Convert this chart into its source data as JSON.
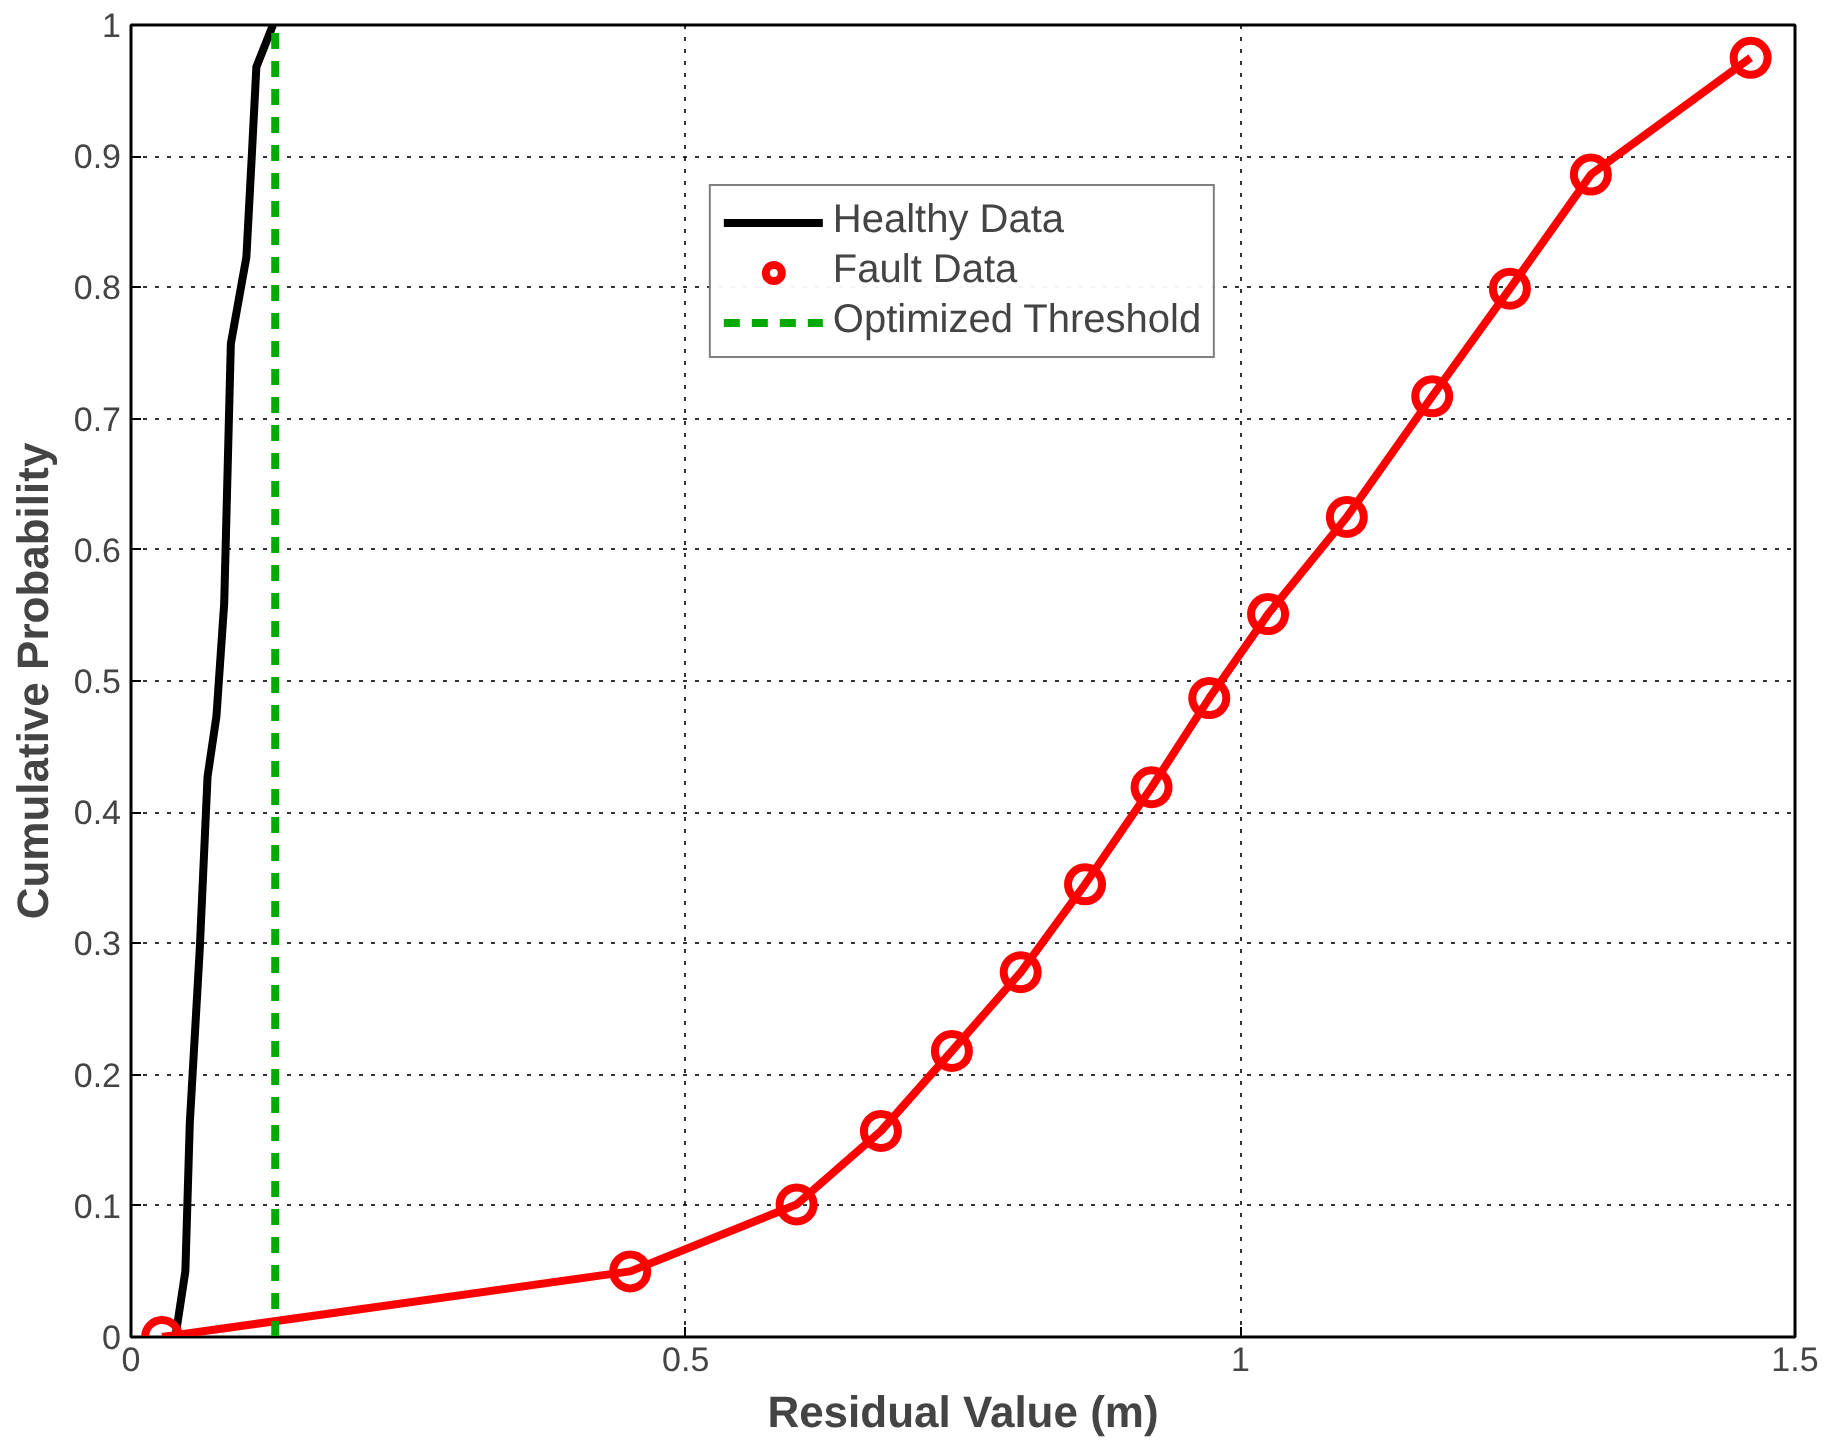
{
  "chart_data": {
    "type": "line",
    "xlabel": "Residual Value (m)",
    "ylabel": "Cumulative Probability",
    "xlim": [
      0,
      1.5
    ],
    "ylim": [
      0,
      1
    ],
    "xticks": [
      0,
      0.5,
      1,
      1.5
    ],
    "yticks": [
      0,
      0.1,
      0.2,
      0.3,
      0.4,
      0.5,
      0.6,
      0.7,
      0.8,
      0.9,
      1
    ],
    "grid": true,
    "legend": "top",
    "series": [
      {
        "name": "Healthy Data",
        "color": "#000000",
        "marker": "none",
        "line_style": "solid",
        "x": [
          0.04,
          0.049,
          0.053,
          0.062,
          0.069,
          0.077,
          0.084,
          0.09,
          0.104,
          0.109,
          0.113,
          0.128
        ],
        "values": [
          0,
          0.05,
          0.163,
          0.296,
          0.427,
          0.473,
          0.559,
          0.757,
          0.823,
          0.902,
          0.968,
          1.0
        ]
      },
      {
        "name": "Fault Data",
        "color": "#ff0000",
        "marker": "circle",
        "line_style": "solid",
        "x": [
          0.028,
          0.45,
          0.6,
          0.676,
          0.74,
          0.802,
          0.86,
          0.92,
          0.972,
          1.025,
          1.096,
          1.173,
          1.243,
          1.316,
          1.46
        ],
        "values": [
          0,
          0.05,
          0.101,
          0.157,
          0.218,
          0.278,
          0.345,
          0.419,
          0.487,
          0.551,
          0.625,
          0.717,
          0.799,
          0.886,
          0.975
        ]
      },
      {
        "name": "Optimized Threshold",
        "color": "#00aa00",
        "marker": "none",
        "line_style": "dashed",
        "x": [
          0.13,
          0.13
        ],
        "values": [
          0,
          1
        ]
      }
    ]
  }
}
